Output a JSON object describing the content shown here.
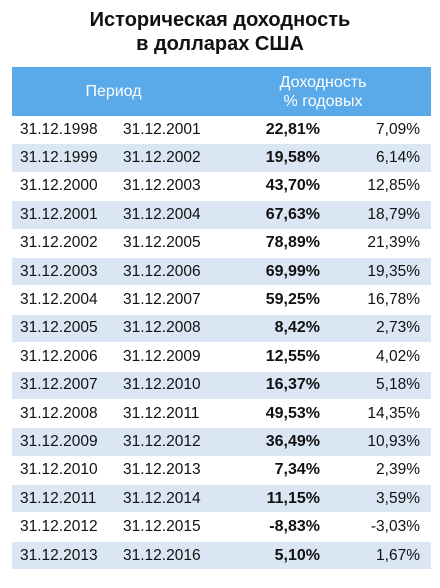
{
  "title": {
    "line1": "Историческая доходность",
    "line2": "в долларах США"
  },
  "header": {
    "period": "Период",
    "yield_line1": "Доходность",
    "yield_line2": "% годовых"
  },
  "rows": [
    {
      "start": "31.12.1998",
      "end": "31.12.2001",
      "total": "22,81%",
      "annual": "7,09%"
    },
    {
      "start": "31.12.1999",
      "end": "31.12.2002",
      "total": "19,58%",
      "annual": "6,14%"
    },
    {
      "start": "31.12.2000",
      "end": "31.12.2003",
      "total": "43,70%",
      "annual": "12,85%"
    },
    {
      "start": "31.12.2001",
      "end": "31.12.2004",
      "total": "67,63%",
      "annual": "18,79%"
    },
    {
      "start": "31.12.2002",
      "end": "31.12.2005",
      "total": "78,89%",
      "annual": "21,39%"
    },
    {
      "start": "31.12.2003",
      "end": "31.12.2006",
      "total": "69,99%",
      "annual": "19,35%"
    },
    {
      "start": "31.12.2004",
      "end": "31.12.2007",
      "total": "59,25%",
      "annual": "16,78%"
    },
    {
      "start": "31.12.2005",
      "end": "31.12.2008",
      "total": "8,42%",
      "annual": "2,73%"
    },
    {
      "start": "31.12.2006",
      "end": "31.12.2009",
      "total": "12,55%",
      "annual": "4,02%"
    },
    {
      "start": "31.12.2007",
      "end": "31.12.2010",
      "total": "16,37%",
      "annual": "5,18%"
    },
    {
      "start": "31.12.2008",
      "end": "31.12.2011",
      "total": "49,53%",
      "annual": "14,35%"
    },
    {
      "start": "31.12.2009",
      "end": "31.12.2012",
      "total": "36,49%",
      "annual": "10,93%"
    },
    {
      "start": "31.12.2010",
      "end": "31.12.2013",
      "total": "7,34%",
      "annual": "2,39%"
    },
    {
      "start": "31.12.2011",
      "end": "31.12.2014",
      "total": "11,15%",
      "annual": "3,59%"
    },
    {
      "start": "31.12.2012",
      "end": "31.12.2015",
      "total": "-8,83%",
      "annual": "-3,03%"
    },
    {
      "start": "31.12.2013",
      "end": "31.12.2016",
      "total": "5,10%",
      "annual": "1,67%"
    }
  ],
  "colors": {
    "header_bg": "#5aaae9",
    "stripe_bg": "#dbe6f5"
  }
}
